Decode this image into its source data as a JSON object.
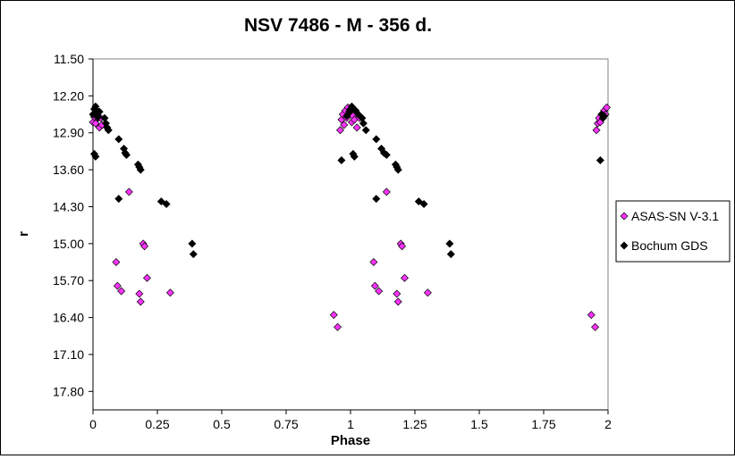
{
  "chart_data": {
    "type": "scatter",
    "title": "NSV 7486 - M - 356 d.",
    "xlabel": "Phase",
    "ylabel": "r",
    "xlim": [
      0,
      2
    ],
    "ylim": [
      11.5,
      18.15
    ],
    "y_inverted": true,
    "grid": false,
    "legend_position": "right",
    "x_ticks": [
      "0",
      "0.25",
      "0.5",
      "0.75",
      "1",
      "1.25",
      "1.5",
      "1.75",
      "2"
    ],
    "y_ticks": [
      "11.50",
      "12.20",
      "12.90",
      "13.60",
      "14.30",
      "15.00",
      "15.70",
      "16.40",
      "17.10",
      "17.80"
    ],
    "series": [
      {
        "name": "ASAS-SN V-3.1",
        "color": "#ff33ff",
        "marker": "diamond",
        "points": [
          [
            -0.005,
            12.65
          ],
          [
            0.0,
            12.7
          ],
          [
            0.005,
            12.6
          ],
          [
            0.01,
            12.72
          ],
          [
            0.015,
            12.55
          ],
          [
            0.02,
            12.62
          ],
          [
            0.025,
            12.8
          ],
          [
            0.03,
            12.62
          ],
          [
            0.035,
            12.75
          ],
          [
            0.09,
            15.35
          ],
          [
            0.095,
            15.8
          ],
          [
            0.11,
            15.9
          ],
          [
            0.14,
            14.02
          ],
          [
            0.18,
            15.95
          ],
          [
            0.185,
            16.1
          ],
          [
            0.195,
            15.0
          ],
          [
            0.2,
            15.05
          ],
          [
            0.21,
            15.65
          ],
          [
            0.3,
            15.93
          ],
          [
            0.935,
            16.35
          ],
          [
            0.95,
            16.58
          ],
          [
            0.96,
            12.85
          ],
          [
            0.965,
            12.65
          ],
          [
            0.97,
            12.55
          ],
          [
            0.975,
            12.75
          ],
          [
            0.98,
            12.48
          ],
          [
            0.985,
            12.62
          ],
          [
            0.99,
            12.42
          ],
          [
            0.995,
            12.55
          ],
          [
            1.005,
            12.7
          ],
          [
            1.01,
            12.58
          ],
          [
            1.015,
            12.65
          ],
          [
            1.025,
            12.8
          ],
          [
            1.035,
            12.62
          ],
          [
            1.09,
            15.35
          ],
          [
            1.095,
            15.8
          ],
          [
            1.11,
            15.9
          ],
          [
            1.14,
            14.02
          ],
          [
            1.18,
            15.95
          ],
          [
            1.185,
            16.1
          ],
          [
            1.195,
            15.0
          ],
          [
            1.2,
            15.05
          ],
          [
            1.21,
            15.65
          ],
          [
            1.3,
            15.93
          ],
          [
            1.935,
            16.35
          ],
          [
            1.95,
            16.58
          ],
          [
            1.955,
            12.85
          ],
          [
            1.96,
            12.72
          ],
          [
            1.965,
            12.62
          ],
          [
            1.97,
            12.7
          ],
          [
            1.975,
            12.55
          ],
          [
            1.98,
            12.62
          ],
          [
            1.985,
            12.48
          ],
          [
            1.99,
            12.55
          ],
          [
            1.995,
            12.42
          ]
        ]
      },
      {
        "name": "Bochum GDS",
        "color": "#000000",
        "marker": "diamond",
        "points": [
          [
            0.0,
            12.55
          ],
          [
            0.005,
            12.45
          ],
          [
            0.01,
            12.4
          ],
          [
            0.015,
            12.48
          ],
          [
            0.02,
            12.6
          ],
          [
            0.025,
            12.5
          ],
          [
            0.005,
            13.3
          ],
          [
            0.01,
            13.35
          ],
          [
            0.045,
            12.62
          ],
          [
            0.05,
            12.72
          ],
          [
            0.055,
            12.8
          ],
          [
            0.06,
            12.85
          ],
          [
            0.1,
            13.02
          ],
          [
            0.1,
            14.15
          ],
          [
            0.12,
            13.2
          ],
          [
            0.125,
            13.28
          ],
          [
            0.13,
            13.32
          ],
          [
            0.175,
            13.5
          ],
          [
            0.18,
            13.55
          ],
          [
            0.185,
            13.6
          ],
          [
            0.265,
            14.2
          ],
          [
            0.285,
            14.25
          ],
          [
            0.385,
            15.0
          ],
          [
            0.39,
            15.2
          ],
          [
            0.965,
            13.42
          ],
          [
            0.985,
            12.58
          ],
          [
            0.995,
            12.5
          ],
          [
            1.0,
            12.45
          ],
          [
            1.005,
            12.4
          ],
          [
            1.01,
            13.3
          ],
          [
            1.015,
            13.35
          ],
          [
            1.02,
            12.48
          ],
          [
            1.03,
            12.55
          ],
          [
            1.045,
            12.62
          ],
          [
            1.05,
            12.72
          ],
          [
            1.06,
            12.85
          ],
          [
            1.1,
            13.02
          ],
          [
            1.1,
            14.15
          ],
          [
            1.12,
            13.2
          ],
          [
            1.13,
            13.28
          ],
          [
            1.14,
            13.32
          ],
          [
            1.175,
            13.5
          ],
          [
            1.18,
            13.55
          ],
          [
            1.185,
            13.6
          ],
          [
            1.265,
            14.2
          ],
          [
            1.285,
            14.25
          ],
          [
            1.385,
            15.0
          ],
          [
            1.39,
            15.2
          ],
          [
            1.97,
            13.42
          ],
          [
            1.975,
            12.55
          ],
          [
            1.98,
            12.62
          ],
          [
            1.985,
            12.58
          ]
        ]
      }
    ]
  }
}
